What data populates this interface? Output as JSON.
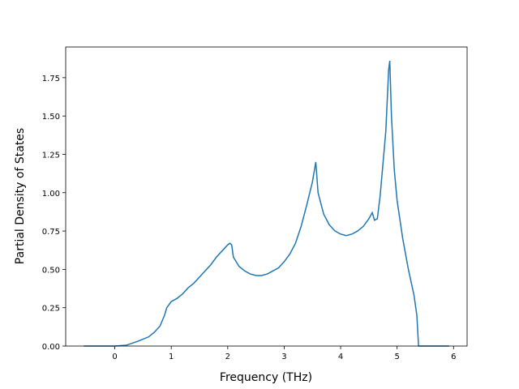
{
  "chart_data": {
    "type": "line",
    "xlabel": "Frequency (THz)",
    "ylabel": "Partial Density of States",
    "x": [
      -0.55,
      0,
      0.2,
      0.4,
      0.6,
      0.7,
      0.8,
      0.88,
      0.92,
      1.0,
      1.1,
      1.2,
      1.3,
      1.4,
      1.5,
      1.6,
      1.7,
      1.8,
      1.9,
      2.0,
      2.04,
      2.07,
      2.1,
      2.2,
      2.3,
      2.4,
      2.5,
      2.6,
      2.7,
      2.8,
      2.9,
      3.0,
      3.1,
      3.2,
      3.3,
      3.4,
      3.5,
      3.56,
      3.6,
      3.7,
      3.8,
      3.9,
      4.0,
      4.1,
      4.2,
      4.3,
      4.4,
      4.5,
      4.56,
      4.6,
      4.65,
      4.7,
      4.8,
      4.85,
      4.87,
      4.9,
      4.95,
      5.0,
      5.1,
      5.2,
      5.3,
      5.35,
      5.38,
      5.92
    ],
    "series": [
      {
        "color": "#1f77b4",
        "values": [
          0,
          0,
          0.005,
          0.03,
          0.06,
          0.09,
          0.13,
          0.2,
          0.25,
          0.29,
          0.31,
          0.34,
          0.38,
          0.41,
          0.45,
          0.49,
          0.53,
          0.58,
          0.62,
          0.66,
          0.67,
          0.66,
          0.58,
          0.52,
          0.49,
          0.47,
          0.46,
          0.46,
          0.47,
          0.49,
          0.51,
          0.55,
          0.6,
          0.67,
          0.78,
          0.92,
          1.07,
          1.2,
          1.0,
          0.86,
          0.79,
          0.75,
          0.73,
          0.72,
          0.73,
          0.75,
          0.78,
          0.83,
          0.87,
          0.82,
          0.83,
          0.98,
          1.4,
          1.8,
          1.86,
          1.5,
          1.15,
          0.95,
          0.7,
          0.5,
          0.33,
          0.2,
          0,
          0
        ]
      }
    ],
    "xlim": [
      -0.87,
      6.24
    ],
    "ylim": [
      0,
      1.95
    ],
    "xticks": [
      0,
      1,
      2,
      3,
      4,
      5,
      6
    ],
    "yticks": [
      {
        "value": 0,
        "label": "0.00"
      },
      {
        "value": 0.25,
        "label": "0.25"
      },
      {
        "value": 0.5,
        "label": "0.50"
      },
      {
        "value": 0.75,
        "label": "0.75"
      },
      {
        "value": 1,
        "label": "1.00"
      },
      {
        "value": 1.25,
        "label": "1.25"
      },
      {
        "value": 1.5,
        "label": "1.50"
      },
      {
        "value": 1.75,
        "label": "1.75"
      }
    ],
    "grid": false
  }
}
